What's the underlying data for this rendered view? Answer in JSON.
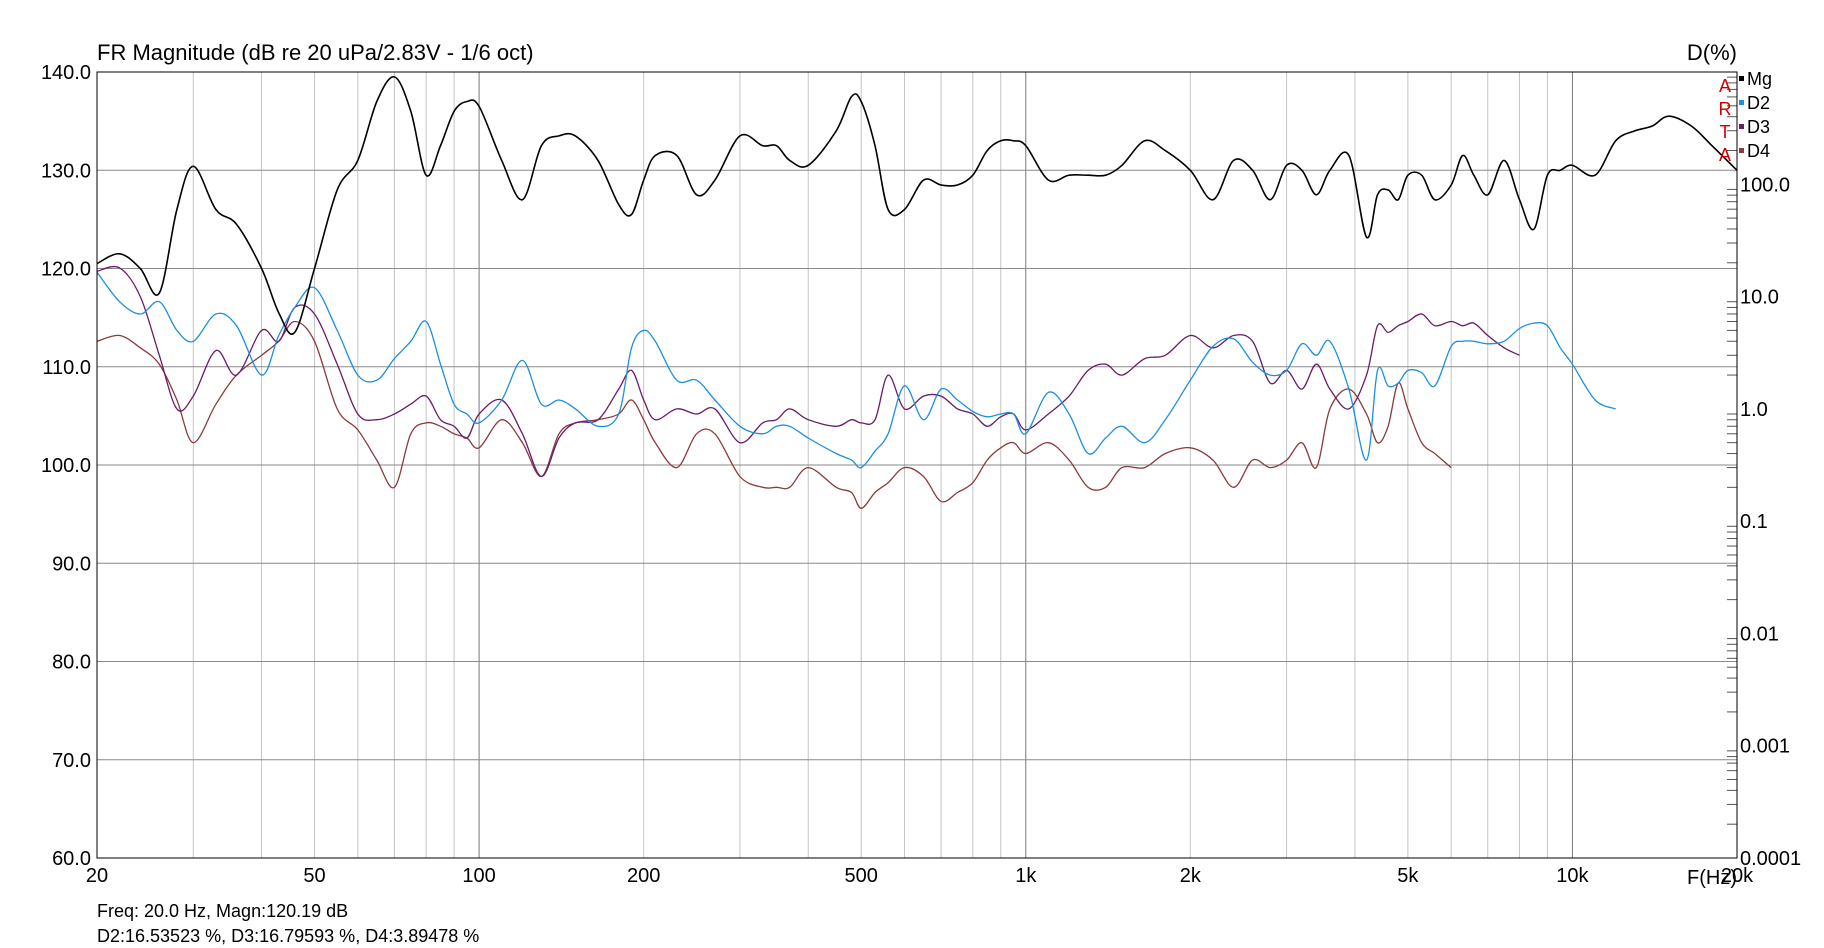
{
  "chart_data": {
    "type": "line",
    "title": "FR Magnitude (dB re 20 uPa/2.83V - 1/6 oct)",
    "right_axis_title": "D(%)",
    "xlabel": "F(Hz)",
    "x_scale": "log",
    "xlim": [
      20,
      20000
    ],
    "ylim": [
      60,
      140
    ],
    "y_right_scale": "log",
    "y_right_lim": [
      0.0001,
      1000
    ],
    "grid": true,
    "legend_position": "top-right",
    "watermark": "ARTA",
    "x_ticks": [
      {
        "v": 20,
        "label": "20"
      },
      {
        "v": 50,
        "label": "50"
      },
      {
        "v": 100,
        "label": "100"
      },
      {
        "v": 200,
        "label": "200"
      },
      {
        "v": 500,
        "label": "500"
      },
      {
        "v": 1000,
        "label": "1k"
      },
      {
        "v": 2000,
        "label": "2k"
      },
      {
        "v": 5000,
        "label": "5k"
      },
      {
        "v": 10000,
        "label": "10k"
      },
      {
        "v": 20000,
        "label": "20k"
      }
    ],
    "y_ticks": [
      {
        "v": 140,
        "label": "140.0"
      },
      {
        "v": 130,
        "label": "130.0"
      },
      {
        "v": 120,
        "label": "120.0"
      },
      {
        "v": 110,
        "label": "110.0"
      },
      {
        "v": 100,
        "label": "100.0"
      },
      {
        "v": 90,
        "label": "90.0"
      },
      {
        "v": 80,
        "label": "80.0"
      },
      {
        "v": 70,
        "label": "70.0"
      },
      {
        "v": 60,
        "label": "60.0"
      }
    ],
    "y_right_ticks": [
      {
        "v": 100,
        "label": "100.0"
      },
      {
        "v": 10,
        "label": "10.0"
      },
      {
        "v": 1,
        "label": "1.0"
      },
      {
        "v": 0.1,
        "label": "0.1"
      },
      {
        "v": 0.01,
        "label": "0.01"
      },
      {
        "v": 0.001,
        "label": "0.001"
      },
      {
        "v": 0.0001,
        "label": "0.0001"
      }
    ],
    "series": [
      {
        "name": "Mg",
        "axis": "left",
        "color": "#000000",
        "x": [
          20,
          22,
          24,
          26,
          28,
          30,
          33,
          36,
          40,
          43,
          46,
          50,
          55,
          60,
          65,
          70,
          75,
          80,
          85,
          90,
          95,
          100,
          110,
          120,
          130,
          140,
          150,
          165,
          180,
          190,
          200,
          210,
          230,
          250,
          270,
          300,
          330,
          350,
          370,
          400,
          450,
          480,
          500,
          530,
          560,
          600,
          650,
          700,
          750,
          800,
          850,
          900,
          950,
          1000,
          1100,
          1200,
          1300,
          1400,
          1500,
          1650,
          1800,
          2000,
          2200,
          2400,
          2600,
          2800,
          3000,
          3200,
          3400,
          3600,
          3900,
          4200,
          4400,
          4600,
          4800,
          5000,
          5300,
          5600,
          6000,
          6300,
          6600,
          7000,
          7500,
          8000,
          8500,
          9000,
          9500,
          10000,
          11000,
          12000,
          13000,
          14000,
          15000,
          16500,
          18000,
          20000
        ],
        "y": [
          120.5,
          121.5,
          120,
          117.5,
          126,
          130.4,
          126,
          124.5,
          120,
          115.5,
          113.5,
          120,
          128,
          131,
          137,
          139.5,
          136,
          129.5,
          132.5,
          136,
          137,
          136.5,
          131,
          127,
          132.5,
          133.5,
          133.5,
          131,
          126.5,
          125.5,
          129,
          131.5,
          131.5,
          127.5,
          129,
          133.5,
          132.5,
          132.5,
          131,
          130.5,
          134,
          137.5,
          137,
          132.5,
          126,
          126,
          129,
          128.5,
          128.5,
          129.5,
          132,
          133,
          133,
          132.5,
          129,
          129.5,
          129.5,
          129.5,
          130.5,
          133,
          132,
          130,
          127,
          131,
          130,
          127,
          130.5,
          130,
          127.5,
          130,
          131.5,
          123.2,
          127.5,
          128,
          127,
          129.5,
          129.5,
          127,
          128.5,
          131.5,
          129.5,
          127.5,
          131,
          127,
          124,
          129.5,
          130,
          130.5,
          129.5,
          133,
          134,
          134.5,
          135.5,
          134.5,
          132.5,
          130
        ]
      },
      {
        "name": "D2",
        "axis": "right",
        "color": "#1c8fe0",
        "x": [
          20,
          22,
          24,
          26,
          28,
          30,
          33,
          36,
          40,
          43,
          46,
          50,
          55,
          60,
          65,
          70,
          75,
          80,
          85,
          90,
          95,
          100,
          110,
          120,
          130,
          140,
          150,
          165,
          180,
          190,
          200,
          210,
          230,
          250,
          270,
          300,
          330,
          350,
          370,
          400,
          450,
          480,
          500,
          530,
          560,
          600,
          650,
          700,
          750,
          800,
          850,
          900,
          950,
          1000,
          1100,
          1200,
          1300,
          1400,
          1500,
          1650,
          1800,
          2000,
          2200,
          2400,
          2600,
          2800,
          3000,
          3200,
          3400,
          3600,
          3900,
          4200,
          4400,
          4600,
          4800,
          5000,
          5300,
          5600,
          6000,
          6300,
          6600,
          7000,
          7500,
          8000,
          8500,
          9000,
          9500,
          10000,
          11000,
          12000
        ],
        "y": [
          16.5,
          9,
          7,
          9,
          5,
          4,
          7,
          5.5,
          2,
          4.5,
          8,
          12,
          5,
          2,
          1.8,
          2.8,
          4,
          6,
          2.5,
          1.1,
          0.9,
          0.75,
          1.2,
          2.7,
          1.1,
          1.2,
          1.0,
          0.7,
          0.9,
          3.5,
          5,
          4,
          1.8,
          1.8,
          1.2,
          0.7,
          0.6,
          0.7,
          0.7,
          0.55,
          0.4,
          0.35,
          0.3,
          0.42,
          0.6,
          1.6,
          0.8,
          1.5,
          1.2,
          0.95,
          0.85,
          0.9,
          0.9,
          0.6,
          1.4,
          0.9,
          0.4,
          0.55,
          0.7,
          0.5,
          0.8,
          1.8,
          3.6,
          4.2,
          2.6,
          2,
          2.2,
          3.8,
          3,
          4,
          1.5,
          0.35,
          2.2,
          1.6,
          1.7,
          2.2,
          2.1,
          1.6,
          3.6,
          4,
          4,
          3.8,
          4,
          5.2,
          5.8,
          5.5,
          3.5,
          2.5,
          1.2,
          1.0
        ]
      },
      {
        "name": "D3",
        "axis": "right",
        "color": "#6a1b6a",
        "x": [
          20,
          22,
          24,
          26,
          28,
          30,
          33,
          36,
          40,
          43,
          46,
          50,
          55,
          60,
          65,
          70,
          75,
          80,
          85,
          90,
          95,
          100,
          110,
          120,
          130,
          140,
          150,
          165,
          180,
          190,
          200,
          210,
          230,
          250,
          270,
          300,
          330,
          350,
          370,
          400,
          450,
          480,
          500,
          530,
          560,
          600,
          650,
          700,
          750,
          800,
          850,
          900,
          950,
          1000,
          1100,
          1200,
          1300,
          1400,
          1500,
          1650,
          1800,
          2000,
          2200,
          2400,
          2600,
          2800,
          3000,
          3200,
          3400,
          3600,
          3900,
          4200,
          4400,
          4600,
          4800,
          5000,
          5300,
          5600,
          6000,
          6300,
          6600,
          7000,
          7500,
          8000
        ],
        "y": [
          16.8,
          18,
          10,
          3,
          1,
          1.3,
          3.3,
          2,
          5,
          4,
          8,
          7,
          2.5,
          0.9,
          0.8,
          0.9,
          1.1,
          1.3,
          0.8,
          0.7,
          0.55,
          0.9,
          1.2,
          0.6,
          0.25,
          0.55,
          0.75,
          0.8,
          1.5,
          2.2,
          1.2,
          0.8,
          1.0,
          0.9,
          1.0,
          0.5,
          0.75,
          0.8,
          1.0,
          0.8,
          0.7,
          0.8,
          0.75,
          0.8,
          2,
          1.0,
          1.3,
          1.3,
          1.0,
          0.9,
          0.7,
          0.85,
          0.9,
          0.65,
          0.9,
          1.3,
          2.2,
          2.5,
          2,
          2.8,
          3,
          4.5,
          3.5,
          4.5,
          4.0,
          1.7,
          2.2,
          1.5,
          2.5,
          1.5,
          1.0,
          2,
          5.5,
          4.8,
          5.5,
          6,
          7,
          5.5,
          6,
          5.5,
          5.8,
          4.5,
          3.5,
          3.0
        ]
      },
      {
        "name": "D4",
        "axis": "right",
        "color": "#8b3a3a",
        "x": [
          20,
          22,
          24,
          26,
          28,
          30,
          33,
          36,
          40,
          43,
          46,
          50,
          55,
          60,
          65,
          70,
          75,
          80,
          85,
          90,
          95,
          100,
          110,
          120,
          130,
          140,
          150,
          165,
          180,
          190,
          200,
          210,
          230,
          250,
          270,
          300,
          330,
          350,
          370,
          400,
          450,
          480,
          500,
          530,
          560,
          600,
          650,
          700,
          750,
          800,
          850,
          900,
          950,
          1000,
          1100,
          1200,
          1300,
          1400,
          1500,
          1650,
          1800,
          2000,
          2200,
          2400,
          2600,
          2800,
          3000,
          3200,
          3400,
          3600,
          3900,
          4200,
          4400,
          4600,
          4800,
          5000,
          5300,
          5600,
          6000
        ],
        "y": [
          4,
          4.5,
          3.5,
          2.5,
          1.2,
          0.5,
          1.1,
          2,
          3,
          4,
          6,
          4,
          1,
          0.65,
          0.35,
          0.2,
          0.6,
          0.75,
          0.7,
          0.6,
          0.55,
          0.45,
          0.8,
          0.5,
          0.25,
          0.6,
          0.75,
          0.8,
          0.9,
          1.2,
          0.8,
          0.5,
          0.3,
          0.6,
          0.6,
          0.25,
          0.2,
          0.2,
          0.2,
          0.3,
          0.2,
          0.18,
          0.13,
          0.18,
          0.22,
          0.3,
          0.25,
          0.15,
          0.18,
          0.22,
          0.35,
          0.45,
          0.5,
          0.4,
          0.5,
          0.35,
          0.2,
          0.2,
          0.3,
          0.3,
          0.4,
          0.45,
          0.35,
          0.2,
          0.35,
          0.3,
          0.35,
          0.5,
          0.3,
          1.0,
          1.5,
          0.9,
          0.5,
          0.7,
          1.7,
          1.0,
          0.5,
          0.4,
          0.3
        ]
      }
    ],
    "readout": {
      "line1": "Freq: 20.0 Hz, Magn:120.19 dB",
      "line2": "D2:16.53523 %, D3:16.79593 %, D4:3.89478 %"
    }
  }
}
